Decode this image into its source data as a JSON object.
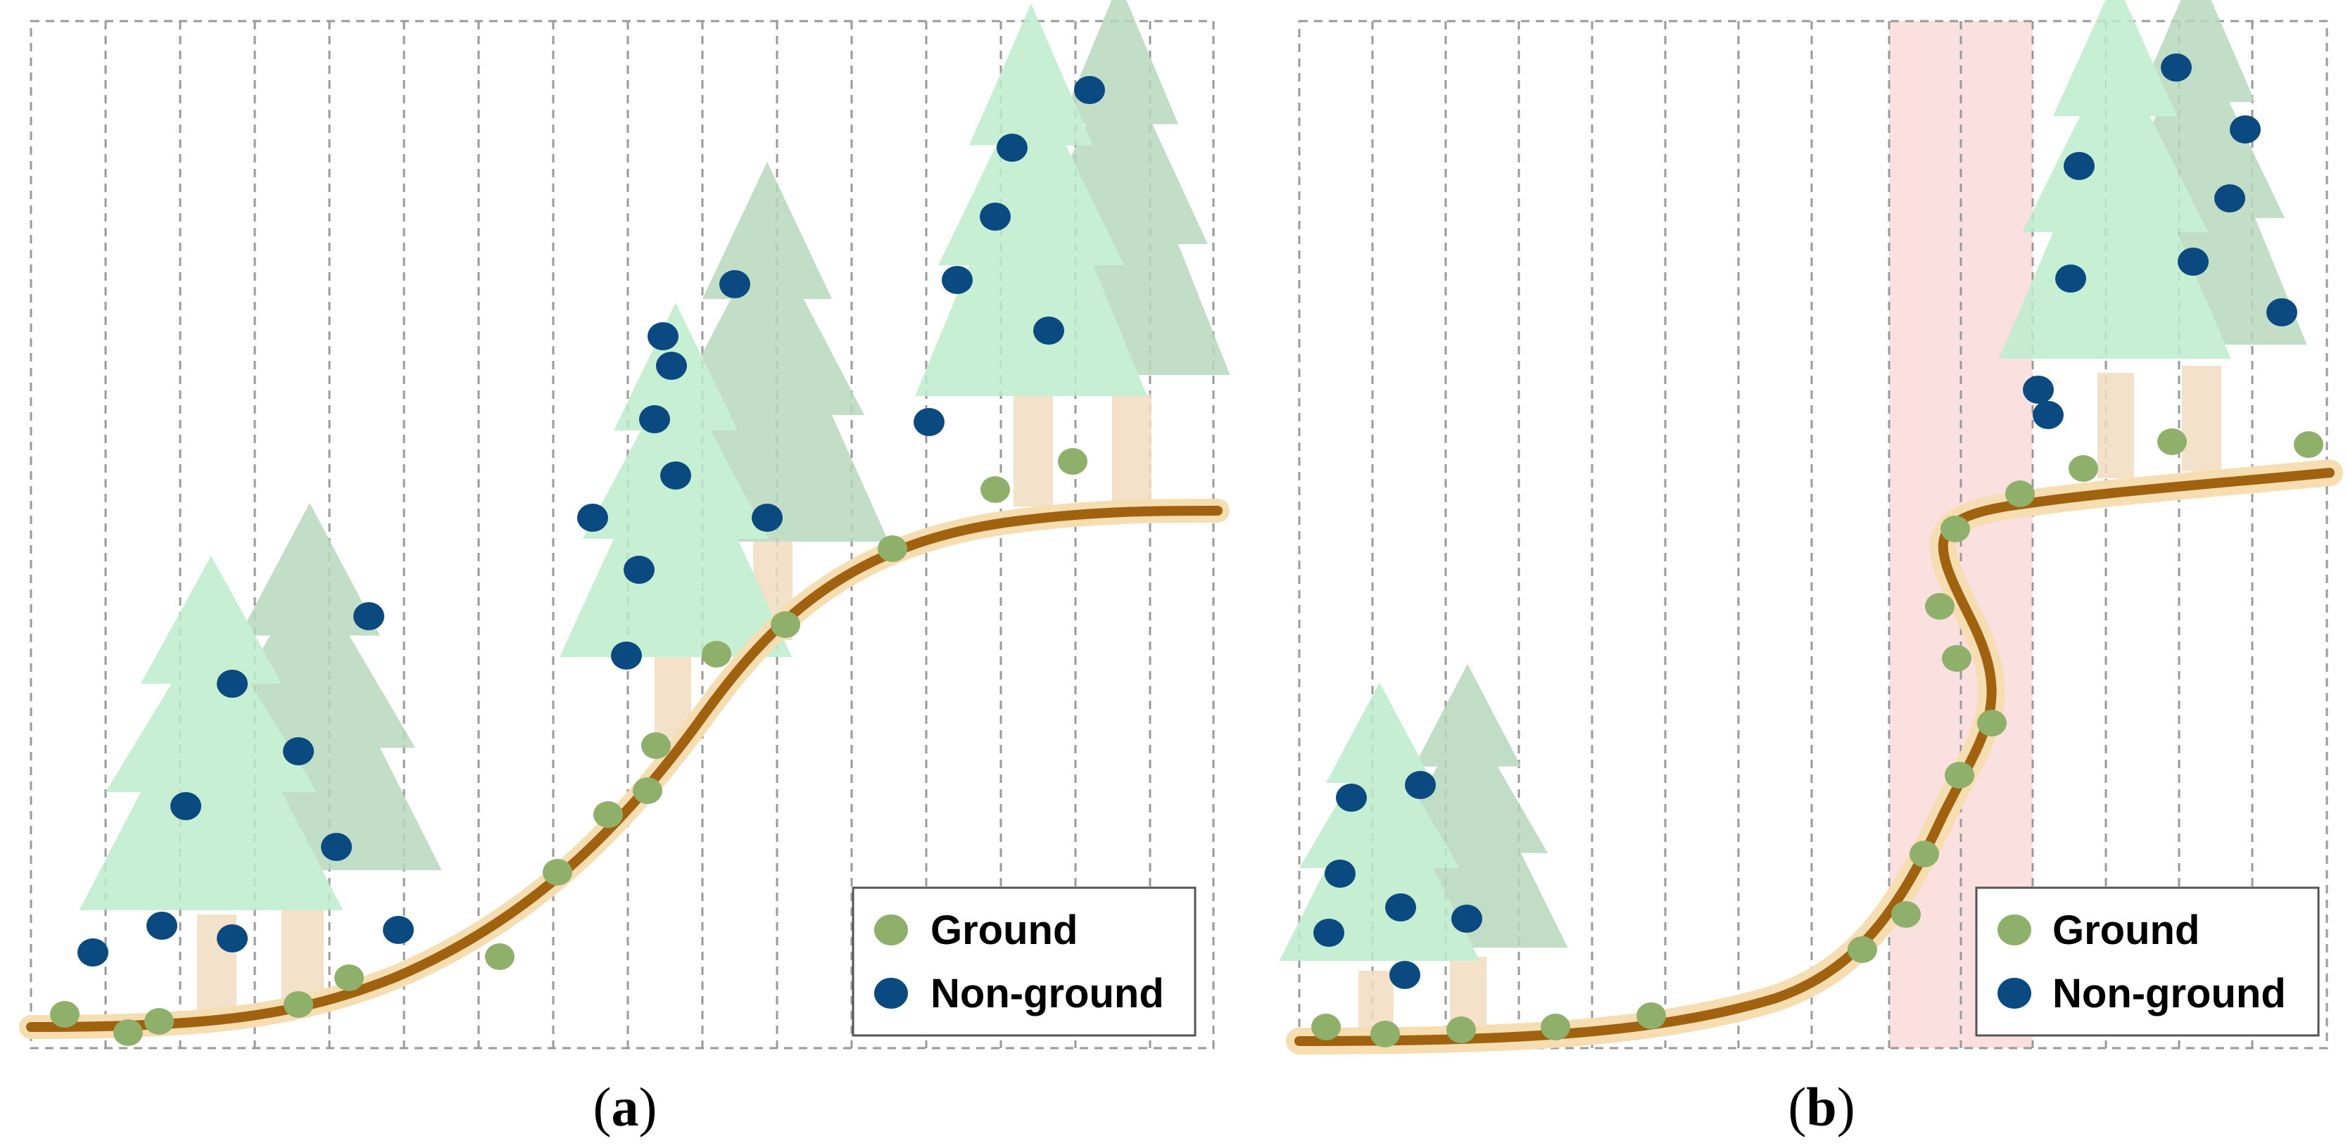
{
  "panels": [
    {
      "id": "a",
      "caption_open": "(",
      "caption_letter": "a",
      "caption_close": ")",
      "legend": {
        "ground_label": "Ground",
        "nonground_label": "Non-ground"
      },
      "has_highlight_band": false
    },
    {
      "id": "b",
      "caption_open": "(",
      "caption_letter": "b",
      "caption_close": ")",
      "legend": {
        "ground_label": "Ground",
        "nonground_label": "Non-ground"
      },
      "has_highlight_band": true
    }
  ],
  "colors": {
    "ground_point": "#8fb06a",
    "nonground_point": "#0b4a80",
    "terrain_line": "#a0620e",
    "terrain_halo": "#f6deb2",
    "tree_front": "#bdeccb",
    "tree_back": "#c2dcc6",
    "trunk": "#f3dcc0",
    "grid_line": "#9a9a9a",
    "highlight_band": "#fbe0e0"
  }
}
